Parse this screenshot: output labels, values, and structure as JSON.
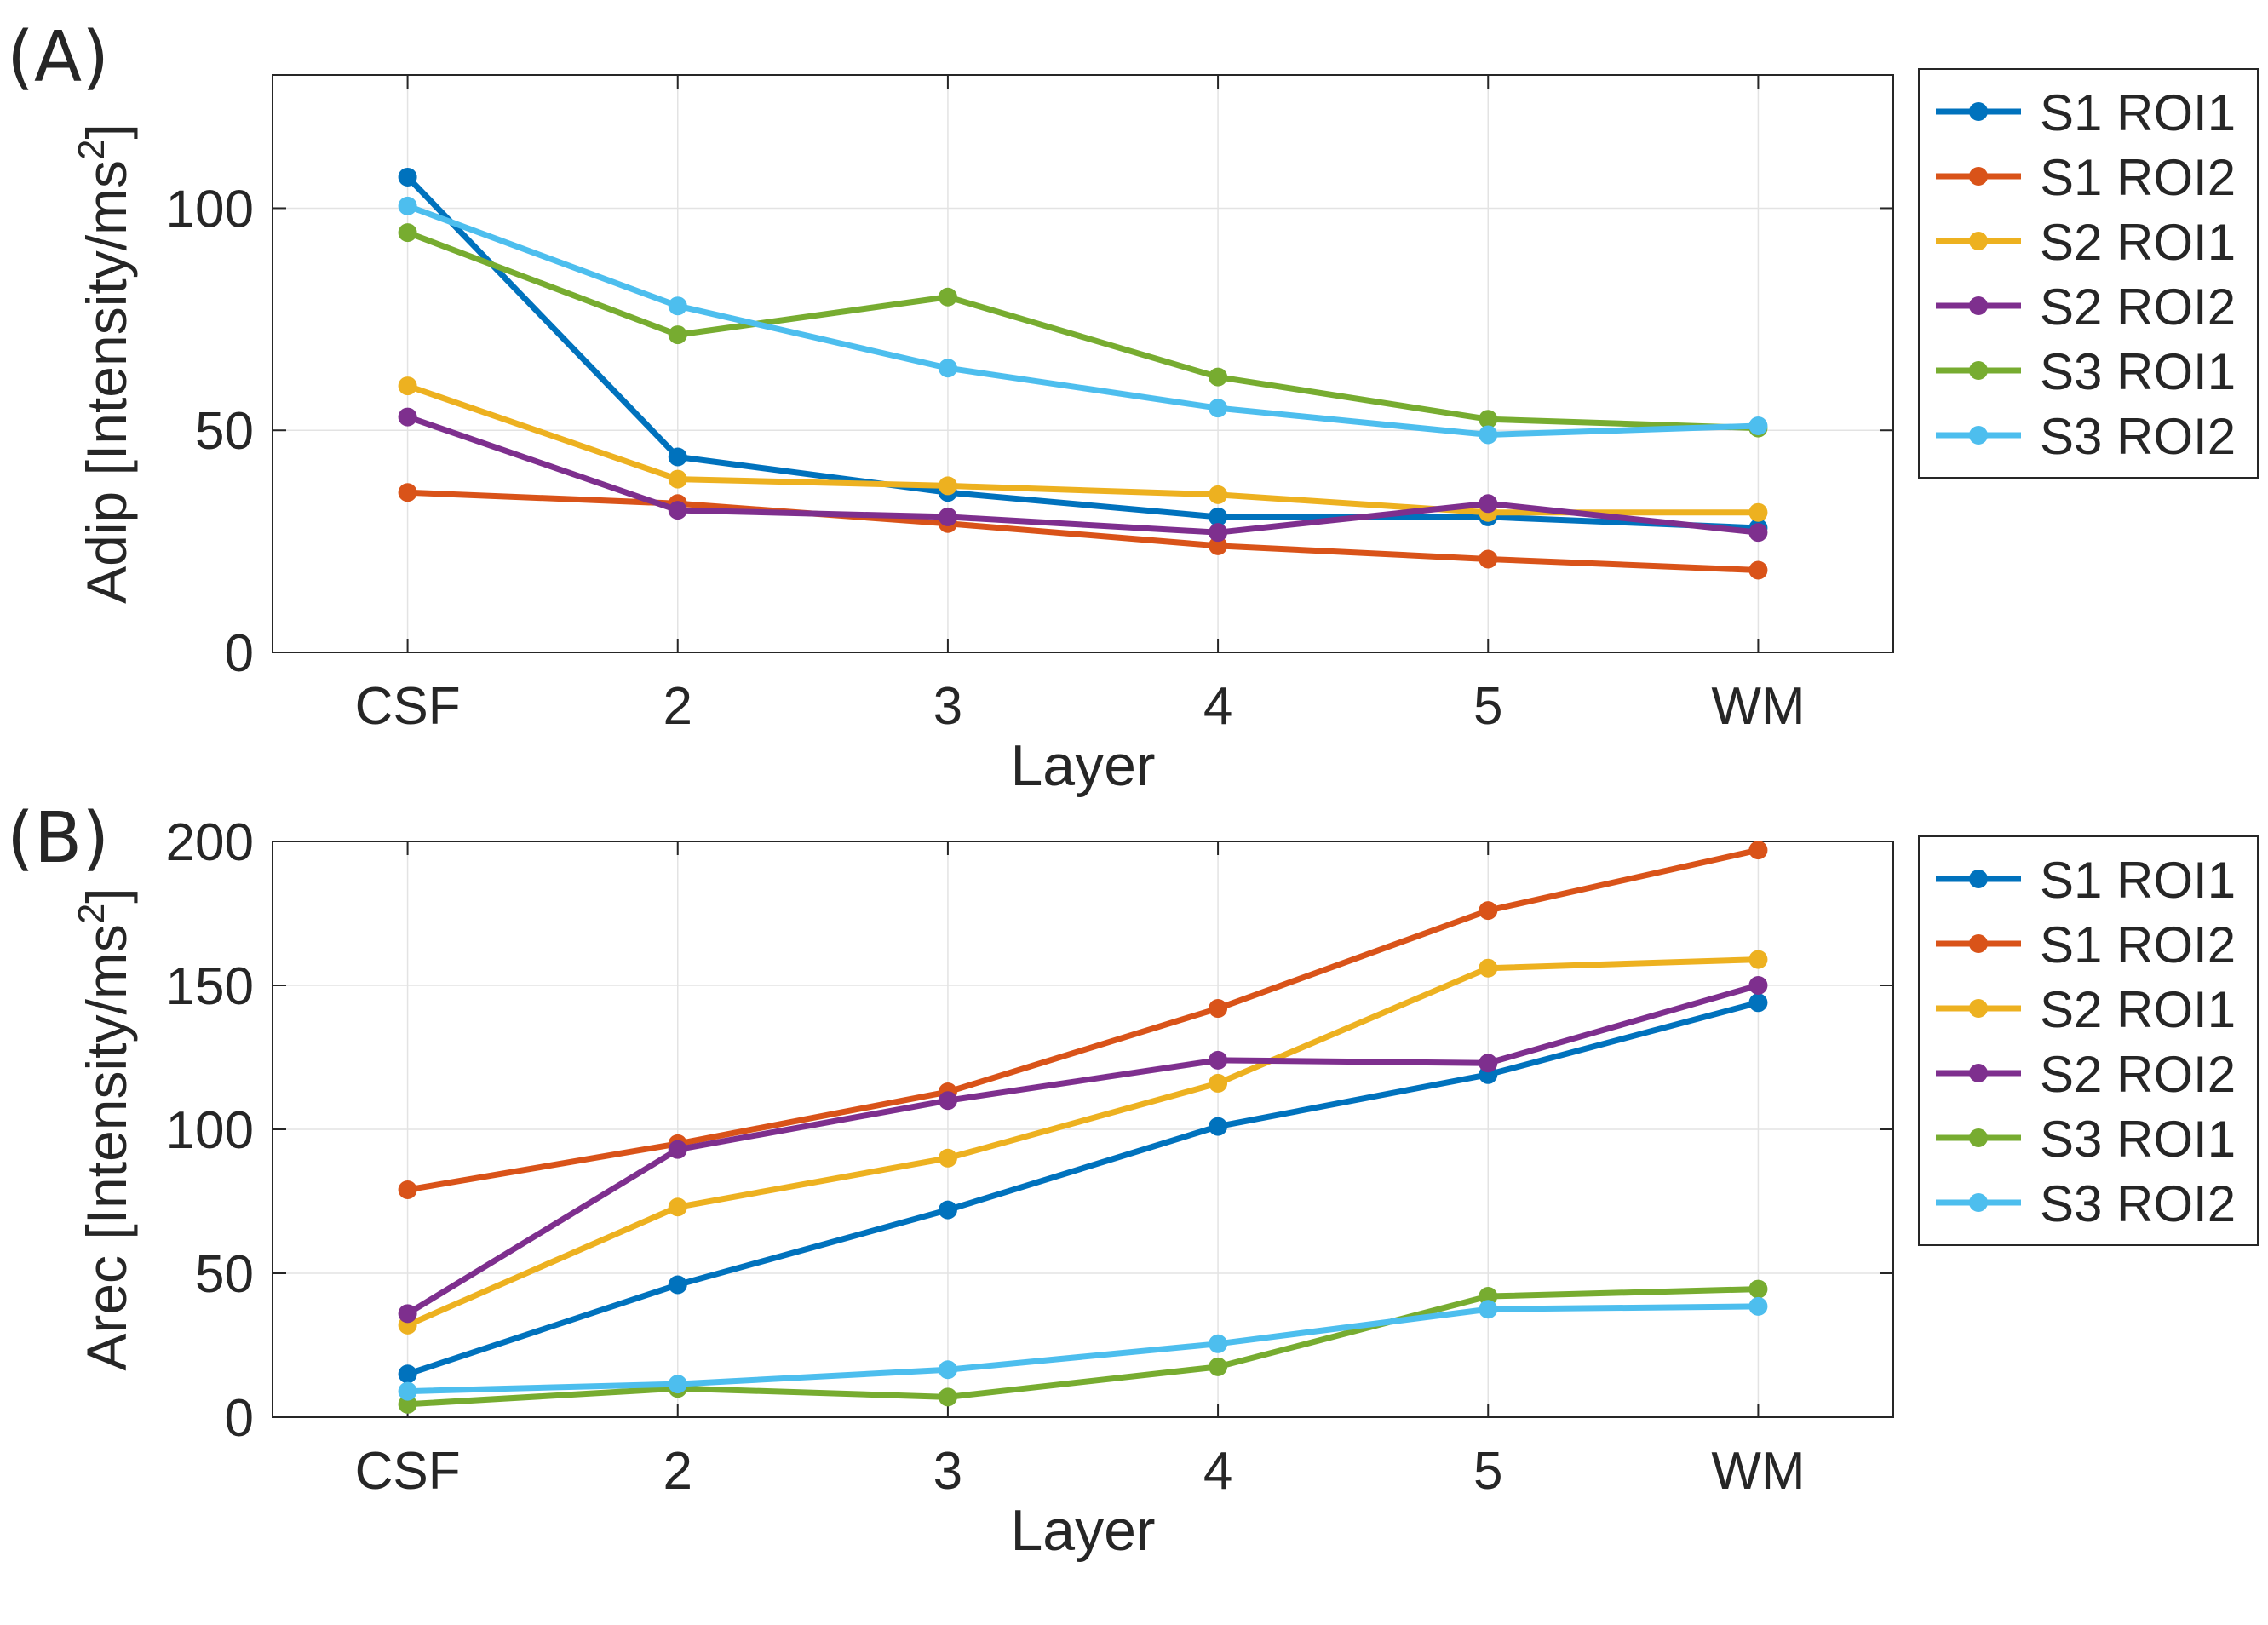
{
  "chart_data": [
    {
      "type": "line",
      "panel_label": "(A)",
      "title": "",
      "xlabel": "Layer",
      "ylabel_prefix": "Adip [Intensity/ms",
      "ylabel_sup": "2",
      "ylabel_suffix": "]",
      "categories": [
        "CSF",
        "2",
        "3",
        "4",
        "5",
        "WM"
      ],
      "ylim": [
        0,
        130
      ],
      "yticks": [
        0,
        50,
        100
      ],
      "grid": true,
      "legend_position": "outside-right",
      "series": [
        {
          "name": "S1 ROI1",
          "color": "#0072BD",
          "values": [
            107,
            44,
            36,
            30.5,
            30.5,
            28
          ]
        },
        {
          "name": "S1 ROI2",
          "color": "#D95319",
          "values": [
            36,
            33.5,
            29,
            24,
            21,
            18.5
          ]
        },
        {
          "name": "S2 ROI1",
          "color": "#EDB120",
          "values": [
            60,
            39,
            37.5,
            35.5,
            31.5,
            31.5
          ]
        },
        {
          "name": "S2 ROI2",
          "color": "#7E2F8E",
          "values": [
            53,
            32,
            30.5,
            27,
            33.5,
            27
          ]
        },
        {
          "name": "S3 ROI1",
          "color": "#77AC30",
          "values": [
            94.5,
            71.5,
            80,
            62,
            52.5,
            50.5
          ]
        },
        {
          "name": "S3 ROI2",
          "color": "#4DBEEE",
          "values": [
            100.5,
            78,
            64,
            55,
            49,
            51
          ]
        }
      ]
    },
    {
      "type": "line",
      "panel_label": "(B)",
      "title": "",
      "xlabel": "Layer",
      "ylabel_prefix": "Arec [Intensity/ms",
      "ylabel_sup": "2",
      "ylabel_suffix": "]",
      "categories": [
        "CSF",
        "2",
        "3",
        "4",
        "5",
        "WM"
      ],
      "ylim": [
        0,
        200
      ],
      "yticks": [
        0,
        50,
        100,
        150,
        200
      ],
      "grid": true,
      "legend_position": "outside-right",
      "series": [
        {
          "name": "S1 ROI1",
          "color": "#0072BD",
          "values": [
            15,
            46,
            72,
            101,
            119,
            144
          ]
        },
        {
          "name": "S1 ROI2",
          "color": "#D95319",
          "values": [
            79,
            95,
            113,
            142,
            176,
            197
          ]
        },
        {
          "name": "S2 ROI1",
          "color": "#EDB120",
          "values": [
            32,
            73,
            90,
            116,
            156,
            159
          ]
        },
        {
          "name": "S2 ROI2",
          "color": "#7E2F8E",
          "values": [
            36,
            93,
            110,
            124,
            123,
            150
          ]
        },
        {
          "name": "S3 ROI1",
          "color": "#77AC30",
          "values": [
            4.5,
            10,
            7,
            17.5,
            42,
            44.5
          ]
        },
        {
          "name": "S3 ROI2",
          "color": "#4DBEEE",
          "values": [
            9,
            11.5,
            16.5,
            25.5,
            37.5,
            38.5
          ]
        }
      ]
    }
  ]
}
